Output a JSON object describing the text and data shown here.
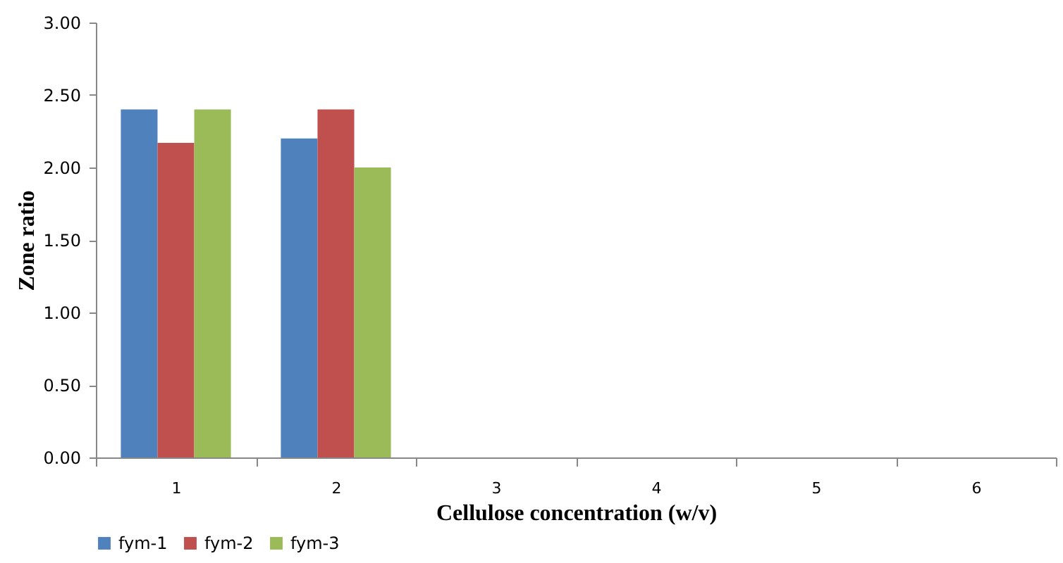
{
  "chart_data": {
    "type": "bar",
    "xlabel": "Cellulose concentration (w/v)",
    "ylabel": "Zone ratio",
    "categories": [
      "1",
      "2",
      "3",
      "4",
      "5",
      "6"
    ],
    "series": [
      {
        "name": "fym-1",
        "color": "#4f81bd",
        "values": [
          2.4,
          2.2,
          null,
          null,
          null,
          null
        ]
      },
      {
        "name": "fym-2",
        "color": "#c0504d",
        "values": [
          2.17,
          2.4,
          null,
          null,
          null,
          null
        ]
      },
      {
        "name": "fym-3",
        "color": "#9bbb59",
        "values": [
          2.4,
          2.0,
          null,
          null,
          null,
          null
        ]
      }
    ],
    "ylim": [
      0,
      3
    ],
    "yticks": [
      {
        "value": 0,
        "label": "0.00"
      },
      {
        "value": 0.5,
        "label": "0.50"
      },
      {
        "value": 1,
        "label": "1.00"
      },
      {
        "value": 1.5,
        "label": "1.50"
      },
      {
        "value": 2,
        "label": "2.00"
      },
      {
        "value": 2.5,
        "label": "2.50"
      },
      {
        "value": 3,
        "label": "3.00"
      }
    ],
    "grid": false,
    "legend": "bottom"
  }
}
